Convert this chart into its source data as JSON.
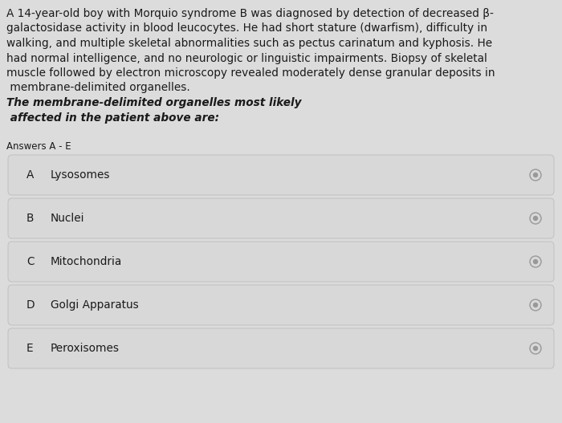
{
  "background_color": "#dcdcdc",
  "text_color": "#1a1a1a",
  "paragraph_lines": [
    "A 14-year-old boy with Morquio syndrome B was diagnosed by detection of decreased β-",
    "galactosidase activity in blood leucocytes. He had short stature (dwarfism), difficulty in",
    "walking, and multiple skeletal abnormalities such as pectus carinatum and kyphosis. He",
    "had normal intelligence, and no neurologic or linguistic impairments. Biopsy of skeletal",
    "muscle followed by electron microscopy revealed moderately dense granular deposits in",
    " membrane-delimited organelles. "
  ],
  "bold_italic_lines": [
    "The membrane-delimited organelles most likely",
    " affected in the patient above are:"
  ],
  "answers_label": "Answers A - E",
  "options": [
    {
      "letter": "A",
      "text": "Lysosomes"
    },
    {
      "letter": "B",
      "text": "Nuclei"
    },
    {
      "letter": "C",
      "text": "Mitochondria"
    },
    {
      "letter": "D",
      "text": "Golgi Apparatus"
    },
    {
      "letter": "E",
      "text": "Peroxisomes"
    }
  ],
  "option_box_color": "#d8d8d8",
  "fig_width": 7.0,
  "fig_height": 5.27,
  "dpi": 100
}
